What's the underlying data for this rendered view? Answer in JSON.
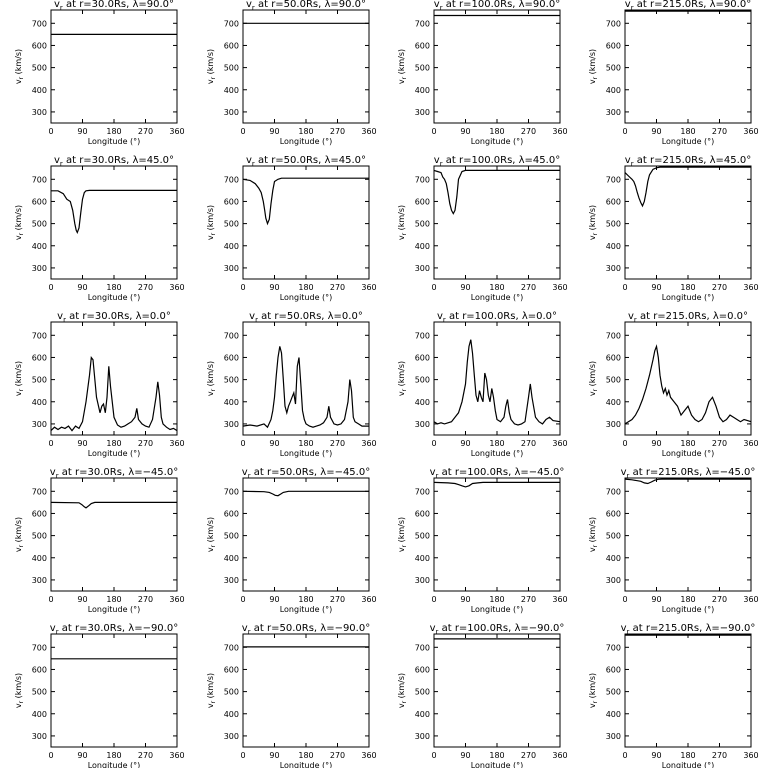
{
  "chart_data": {
    "type": "line",
    "grid": false,
    "xlabel": "Longitude (°)",
    "ylabel": "v_r (km/s)",
    "xlim": [
      0,
      360
    ],
    "ylim": [
      250,
      760
    ],
    "xticks": [
      0,
      90,
      180,
      270,
      360
    ],
    "yticks": [
      300,
      400,
      500,
      600,
      700
    ],
    "title_prefix": "v",
    "title_subscript": "r",
    "panels": [
      {
        "title": " at r=30.0Rs, λ=90.0°",
        "x": [
          0,
          360
        ],
        "y": [
          650,
          650
        ]
      },
      {
        "title": " at r=50.0Rs, λ=90.0°",
        "x": [
          0,
          360
        ],
        "y": [
          700,
          700
        ]
      },
      {
        "title": " at r=100.0Rs, λ=90.0°",
        "x": [
          0,
          360
        ],
        "y": [
          735,
          735
        ]
      },
      {
        "title": " at r=215.0Rs, λ=90.0°",
        "x": [
          0,
          360
        ],
        "y": [
          755,
          755
        ]
      },
      {
        "title": " at r=30.0Rs, λ=45.0°",
        "x": [
          0,
          20,
          35,
          45,
          55,
          62,
          68,
          72,
          75,
          80,
          85,
          90,
          95,
          100,
          110,
          130,
          360
        ],
        "y": [
          648,
          648,
          635,
          610,
          600,
          560,
          500,
          470,
          460,
          480,
          550,
          610,
          640,
          648,
          650,
          650,
          650
        ]
      },
      {
        "title": " at r=50.0Rs, λ=45.0°",
        "x": [
          0,
          20,
          35,
          45,
          52,
          58,
          62,
          65,
          70,
          75,
          80,
          85,
          90,
          100,
          110,
          360
        ],
        "y": [
          700,
          695,
          680,
          660,
          640,
          600,
          560,
          525,
          500,
          520,
          590,
          650,
          690,
          700,
          705,
          705
        ]
      },
      {
        "title": " at r=100.0Rs, λ=45.0°",
        "x": [
          0,
          10,
          20,
          25,
          30,
          35,
          40,
          45,
          50,
          55,
          60,
          65,
          70,
          80,
          90,
          360
        ],
        "y": [
          740,
          735,
          730,
          710,
          700,
          680,
          640,
          590,
          560,
          545,
          560,
          620,
          700,
          735,
          740,
          740
        ]
      },
      {
        "title": " at r=215.0Rs, λ=45.0°",
        "x": [
          0,
          10,
          20,
          25,
          30,
          35,
          40,
          45,
          50,
          55,
          60,
          65,
          70,
          80,
          90,
          100,
          360
        ],
        "y": [
          730,
          715,
          700,
          690,
          670,
          640,
          615,
          595,
          580,
          600,
          640,
          690,
          720,
          745,
          752,
          755,
          755
        ]
      },
      {
        "title": " at r=30.0Rs, λ=0.0°",
        "x": [
          0,
          10,
          20,
          30,
          40,
          50,
          60,
          70,
          80,
          90,
          100,
          110,
          115,
          120,
          130,
          140,
          145,
          150,
          155,
          160,
          165,
          170,
          180,
          190,
          200,
          210,
          220,
          230,
          240,
          245,
          250,
          260,
          270,
          280,
          290,
          300,
          305,
          310,
          315,
          320,
          330,
          340,
          350,
          360
        ],
        "y": [
          270,
          285,
          275,
          285,
          280,
          290,
          270,
          290,
          280,
          310,
          400,
          520,
          600,
          590,
          420,
          350,
          380,
          390,
          350,
          420,
          560,
          470,
          330,
          295,
          285,
          290,
          300,
          310,
          330,
          370,
          320,
          300,
          290,
          285,
          320,
          420,
          490,
          430,
          330,
          300,
          285,
          275,
          280,
          270
        ]
      },
      {
        "title": " at r=50.0Rs, λ=0.0°",
        "x": [
          0,
          20,
          40,
          60,
          70,
          80,
          85,
          90,
          95,
          100,
          105,
          110,
          115,
          120,
          125,
          130,
          135,
          140,
          145,
          150,
          155,
          160,
          165,
          170,
          175,
          180,
          190,
          200,
          210,
          220,
          230,
          240,
          245,
          250,
          260,
          270,
          280,
          290,
          300,
          305,
          310,
          315,
          320,
          330,
          340,
          360
        ],
        "y": [
          290,
          295,
          290,
          300,
          285,
          320,
          360,
          420,
          520,
          600,
          650,
          620,
          500,
          380,
          350,
          380,
          400,
          420,
          440,
          390,
          560,
          600,
          480,
          360,
          320,
          300,
          290,
          285,
          290,
          295,
          305,
          330,
          380,
          330,
          300,
          295,
          300,
          320,
          400,
          500,
          450,
          330,
          310,
          300,
          290,
          290
        ]
      },
      {
        "title": " at r=100.0Rs, λ=0.0°",
        "x": [
          0,
          10,
          20,
          30,
          40,
          50,
          60,
          70,
          80,
          90,
          95,
          100,
          105,
          110,
          115,
          120,
          125,
          130,
          135,
          140,
          145,
          150,
          155,
          160,
          165,
          170,
          175,
          180,
          190,
          200,
          205,
          210,
          215,
          220,
          230,
          240,
          250,
          260,
          270,
          275,
          280,
          290,
          300,
          310,
          320,
          330,
          340,
          360
        ],
        "y": [
          310,
          300,
          305,
          300,
          305,
          310,
          330,
          350,
          400,
          480,
          580,
          650,
          680,
          620,
          520,
          430,
          400,
          450,
          420,
          400,
          530,
          500,
          430,
          400,
          460,
          420,
          360,
          320,
          310,
          330,
          380,
          410,
          350,
          320,
          300,
          295,
          300,
          310,
          420,
          480,
          420,
          330,
          310,
          300,
          320,
          330,
          315,
          310
        ]
      },
      {
        "title": " at r=215.0Rs, λ=0.0°",
        "x": [
          0,
          20,
          30,
          40,
          50,
          60,
          70,
          80,
          85,
          90,
          95,
          100,
          105,
          110,
          115,
          120,
          125,
          130,
          140,
          150,
          160,
          170,
          180,
          190,
          200,
          210,
          220,
          230,
          240,
          250,
          260,
          270,
          280,
          290,
          300,
          310,
          320,
          330,
          340,
          350,
          360
        ],
        "y": [
          300,
          320,
          340,
          370,
          410,
          460,
          520,
          590,
          630,
          650,
          600,
          520,
          470,
          440,
          460,
          430,
          450,
          420,
          400,
          380,
          340,
          360,
          380,
          340,
          320,
          310,
          320,
          350,
          400,
          420,
          380,
          330,
          310,
          320,
          340,
          330,
          320,
          310,
          320,
          315,
          310
        ]
      },
      {
        "title": " at r=30.0Rs, λ=−45.0°",
        "x": [
          0,
          80,
          88,
          95,
          100,
          108,
          115,
          125,
          360
        ],
        "y": [
          650,
          648,
          640,
          630,
          625,
          635,
          645,
          650,
          650
        ]
      },
      {
        "title": " at r=50.0Rs, λ=−45.0°",
        "x": [
          0,
          60,
          75,
          85,
          92,
          100,
          108,
          115,
          130,
          360
        ],
        "y": [
          700,
          698,
          695,
          688,
          682,
          680,
          688,
          695,
          700,
          700
        ]
      },
      {
        "title": " at r=100.0Rs, λ=−45.0°",
        "x": [
          0,
          40,
          60,
          70,
          80,
          90,
          100,
          110,
          125,
          140,
          360
        ],
        "y": [
          740,
          738,
          735,
          730,
          725,
          720,
          725,
          735,
          738,
          740,
          740
        ]
      },
      {
        "title": " at r=215.0Rs, λ=−45.0°",
        "x": [
          0,
          20,
          35,
          45,
          55,
          65,
          75,
          85,
          95,
          105,
          360
        ],
        "y": [
          755,
          752,
          748,
          745,
          738,
          735,
          742,
          750,
          754,
          755,
          755
        ]
      },
      {
        "title": " at r=30.0Rs, λ=−90.0°",
        "x": [
          0,
          360
        ],
        "y": [
          648,
          648
        ]
      },
      {
        "title": " at r=50.0Rs, λ=−90.0°",
        "x": [
          0,
          360
        ],
        "y": [
          702,
          702
        ]
      },
      {
        "title": " at r=100.0Rs, λ=−90.0°",
        "x": [
          0,
          360
        ],
        "y": [
          738,
          738
        ]
      },
      {
        "title": " at r=215.0Rs, λ=−90.0°",
        "x": [
          0,
          360
        ],
        "y": [
          755,
          755
        ]
      }
    ]
  }
}
